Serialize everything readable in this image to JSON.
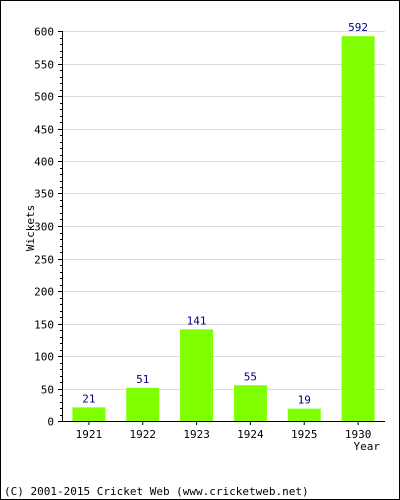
{
  "chart_data": {
    "type": "bar",
    "categories": [
      "1921",
      "1922",
      "1923",
      "1924",
      "1925",
      "1930"
    ],
    "values": [
      21,
      51,
      141,
      55,
      19,
      592
    ],
    "data_labels": [
      "21",
      "51",
      "141",
      "55",
      "19",
      "592"
    ],
    "xlabel": "Year",
    "ylabel": "Wickets",
    "ylim": [
      0,
      600
    ],
    "yticks": [
      0,
      50,
      100,
      150,
      200,
      250,
      300,
      350,
      400,
      450,
      500,
      550,
      600
    ],
    "grid": true,
    "bar_color": "#80ff00",
    "label_color": "#000080"
  },
  "footer": {
    "copyright": "(C) 2001-2015 Cricket Web (www.cricketweb.net)"
  }
}
